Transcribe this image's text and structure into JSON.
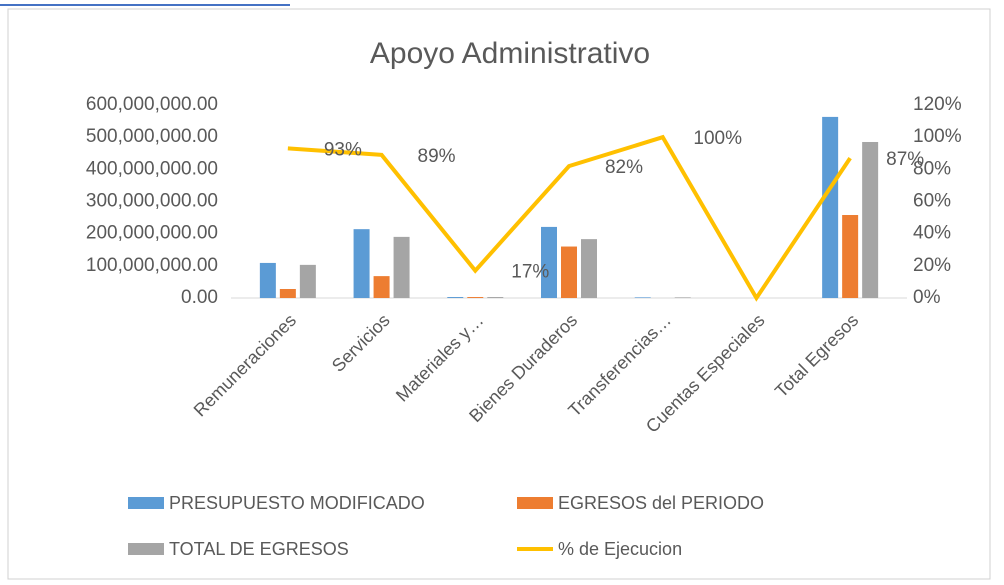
{
  "chart_data": {
    "type": "bar-line",
    "title": "Apoyo Administrativo",
    "categories": [
      "Remuneraciones",
      "Servicios",
      "Materiales y…",
      "Bienes Duraderos",
      "Transferencias…",
      "Cuentas Especiales",
      "Total  Egresos"
    ],
    "series": [
      {
        "name": "PRESUPUESTO MODIFICADO",
        "color": "#5b9bd5",
        "type": "bar",
        "values": [
          109000000,
          214000000,
          3000000,
          221000000,
          2000000,
          0,
          563000000
        ]
      },
      {
        "name": "EGRESOS del PERIODO",
        "color": "#ed7d31",
        "type": "bar",
        "values": [
          28000000,
          68000000,
          3000000,
          160000000,
          0,
          0,
          258000000
        ]
      },
      {
        "name": "TOTAL DE EGRESOS",
        "color": "#a5a5a5",
        "type": "bar",
        "values": [
          103000000,
          190000000,
          3000000,
          183000000,
          2000000,
          0,
          485000000
        ]
      },
      {
        "name": "% de Ejecucion",
        "color": "#ffc000",
        "type": "line",
        "axis": "y2",
        "values": [
          93,
          89,
          17,
          82,
          100,
          0,
          87
        ],
        "value_labels": [
          "93%",
          "89%",
          "17%",
          "82%",
          "100%",
          null,
          "87%"
        ]
      }
    ],
    "ylim": [
      0,
      600000000
    ],
    "yticks": [
      {
        "value": 0,
        "label": "0.00"
      },
      {
        "value": 100000000,
        "label": "100,000,000.00"
      },
      {
        "value": 200000000,
        "label": "200,000,000.00"
      },
      {
        "value": 300000000,
        "label": "300,000,000.00"
      },
      {
        "value": 400000000,
        "label": "400,000,000.00"
      },
      {
        "value": 500000000,
        "label": "500,000,000.00"
      },
      {
        "value": 600000000,
        "label": "600,000,000.00"
      }
    ],
    "y2lim": [
      0,
      120
    ],
    "y2ticks": [
      {
        "value": 0,
        "label": "0%"
      },
      {
        "value": 20,
        "label": "20%"
      },
      {
        "value": 40,
        "label": "40%"
      },
      {
        "value": 60,
        "label": "60%"
      },
      {
        "value": 80,
        "label": "80%"
      },
      {
        "value": 100,
        "label": "100%"
      },
      {
        "value": 120,
        "label": "120%"
      }
    ],
    "legend": "bottom"
  }
}
